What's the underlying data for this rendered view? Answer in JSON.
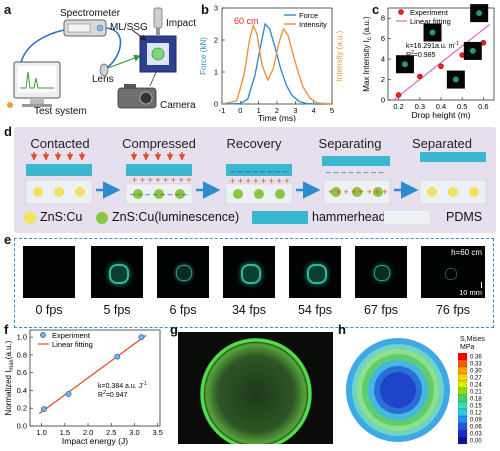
{
  "panels": {
    "a": {
      "letter": "a",
      "labels": {
        "spectrometer": "Spectrometer",
        "impact": "Impact",
        "ml_ssg": "ML/SSG",
        "lens": "Lens",
        "camera": "Camera",
        "test_system": "Test system"
      }
    },
    "b": {
      "letter": "b"
    },
    "c": {
      "letter": "c"
    },
    "d": {
      "letter": "d",
      "stages": [
        "Contacted",
        "Compressed",
        "Recovery",
        "Separating",
        "Separated"
      ],
      "legend": {
        "zns_cu": "ZnS:Cu",
        "zns_cu_lum": "ZnS:Cu(luminescence)",
        "hammerhead": "hammerhead",
        "pdms": "PDMS"
      }
    },
    "e": {
      "letter": "e",
      "frame_labels": [
        "0 fps",
        "5 fps",
        "6 fps",
        "34 fps",
        "54 fps",
        "67 fps",
        "76 fps"
      ],
      "height_note": "h=60 cm",
      "scale_note": "10 mm"
    },
    "f": {
      "letter": "f"
    },
    "g": {
      "letter": "g"
    },
    "h": {
      "letter": "h",
      "colorbar_title_1": "S,Mises",
      "colorbar_title_2": "MPa",
      "colorbar_ticks": [
        "0.36",
        "0.33",
        "0.30",
        "0.27",
        "0.24",
        "0.21",
        "0.18",
        "0.15",
        "0.12",
        "0.09",
        "0.06",
        "0.03",
        "0.00"
      ]
    }
  },
  "colors": {
    "force": "#2f8fcf",
    "intensity": "#f0923a",
    "fit_c": "#e46dce",
    "fit_f": "#e8542a",
    "hammer": "#3bb7cf",
    "arrow_blue": "#2e8bd0",
    "zns": "#f6e25a",
    "zns_lum": "#8cc63f"
  },
  "chart_data": [
    {
      "panel": "b",
      "type": "line",
      "annotation": "60 cm",
      "xlabel": "Time (ms)",
      "ylabel_left": "Force (kN)",
      "ylabel_right": "Intensity (a.u.)",
      "xlim": [
        -1,
        5
      ],
      "ylim_left": [
        0,
        3
      ],
      "xticks": [
        "-1",
        "0",
        "1",
        "2",
        "3",
        "4",
        "5"
      ],
      "yticks_left": [
        "0",
        "1",
        "2",
        "3"
      ],
      "series": [
        {
          "name": "Force",
          "x": [
            -1,
            0,
            0.4,
            0.8,
            1.1,
            1.35,
            1.6,
            1.9,
            2.2,
            2.5,
            2.8,
            3.2,
            3.6,
            4.0,
            5.0
          ],
          "y": [
            0,
            0.02,
            0.15,
            0.9,
            1.8,
            2.5,
            2.35,
            1.75,
            1.1,
            0.6,
            0.28,
            0.08,
            0.02,
            0,
            0
          ]
        },
        {
          "name": "Intensity",
          "x": [
            -1,
            -0.2,
            0.2,
            0.5,
            0.7,
            0.9,
            1.2,
            1.5,
            1.8,
            2.1,
            2.35,
            2.6,
            2.85,
            3.1,
            3.4,
            3.8,
            4.2,
            5.0
          ],
          "y": [
            0,
            0.1,
            0.9,
            2.0,
            2.45,
            2.2,
            1.2,
            0.75,
            1.1,
            1.9,
            2.35,
            2.15,
            1.6,
            1.1,
            0.55,
            0.18,
            0.03,
            0
          ]
        }
      ]
    },
    {
      "panel": "c",
      "type": "scatter",
      "xlabel": "Drop height (m)",
      "ylabel": "Max Intensity I",
      "ylabel_sub": "c",
      "ylabel_unit": " (a.u.)",
      "xlim": [
        0.15,
        0.65
      ],
      "ylim": [
        0,
        9
      ],
      "xticks": [
        "0.2",
        "0.3",
        "0.4",
        "0.5",
        "0.6"
      ],
      "yticks": [
        "0",
        "2",
        "4",
        "6",
        "8"
      ],
      "legend": [
        "Experiment",
        "Linear fitting"
      ],
      "annotation_k": "k=16.291a.u. m",
      "annotation_k_sup": "-1",
      "annotation_r2": "R",
      "annotation_r2_val": "=0.985",
      "points": [
        {
          "x": 0.2,
          "y": 0.5
        },
        {
          "x": 0.3,
          "y": 2.3
        },
        {
          "x": 0.4,
          "y": 3.3
        },
        {
          "x": 0.5,
          "y": 4.4
        },
        {
          "x": 0.6,
          "y": 5.6
        }
      ],
      "fit": {
        "x": [
          0.17,
          0.63
        ],
        "y": [
          -0.1,
          7.4
        ]
      }
    },
    {
      "panel": "f",
      "type": "scatter",
      "xlabel": "Impact energy (J)",
      "ylabel": "Normalized I",
      "ylabel_sub": "max",
      "ylabel_unit": "(a.u.)",
      "xlim": [
        0.75,
        3.55
      ],
      "ylim": [
        0.0,
        1.08
      ],
      "xticks": [
        "1.0",
        "1.5",
        "2.0",
        "2.5",
        "3.0",
        "3.5"
      ],
      "yticks": [
        "0.0",
        "0.2",
        "0.4",
        "0.6",
        "0.8",
        "1.0"
      ],
      "legend": [
        "Experiment",
        "Linear fitting"
      ],
      "annotation_k": "k=0.384 a.u. J",
      "annotation_k_sup": "-1",
      "annotation_r2": "R",
      "annotation_r2_val": "=0.947",
      "points": [
        {
          "x": 1.05,
          "y": 0.19
        },
        {
          "x": 1.58,
          "y": 0.36
        },
        {
          "x": 2.63,
          "y": 0.78
        },
        {
          "x": 3.15,
          "y": 1.0
        }
      ],
      "fit": {
        "x": [
          0.95,
          3.25
        ],
        "y": [
          0.14,
          1.02
        ]
      }
    }
  ]
}
